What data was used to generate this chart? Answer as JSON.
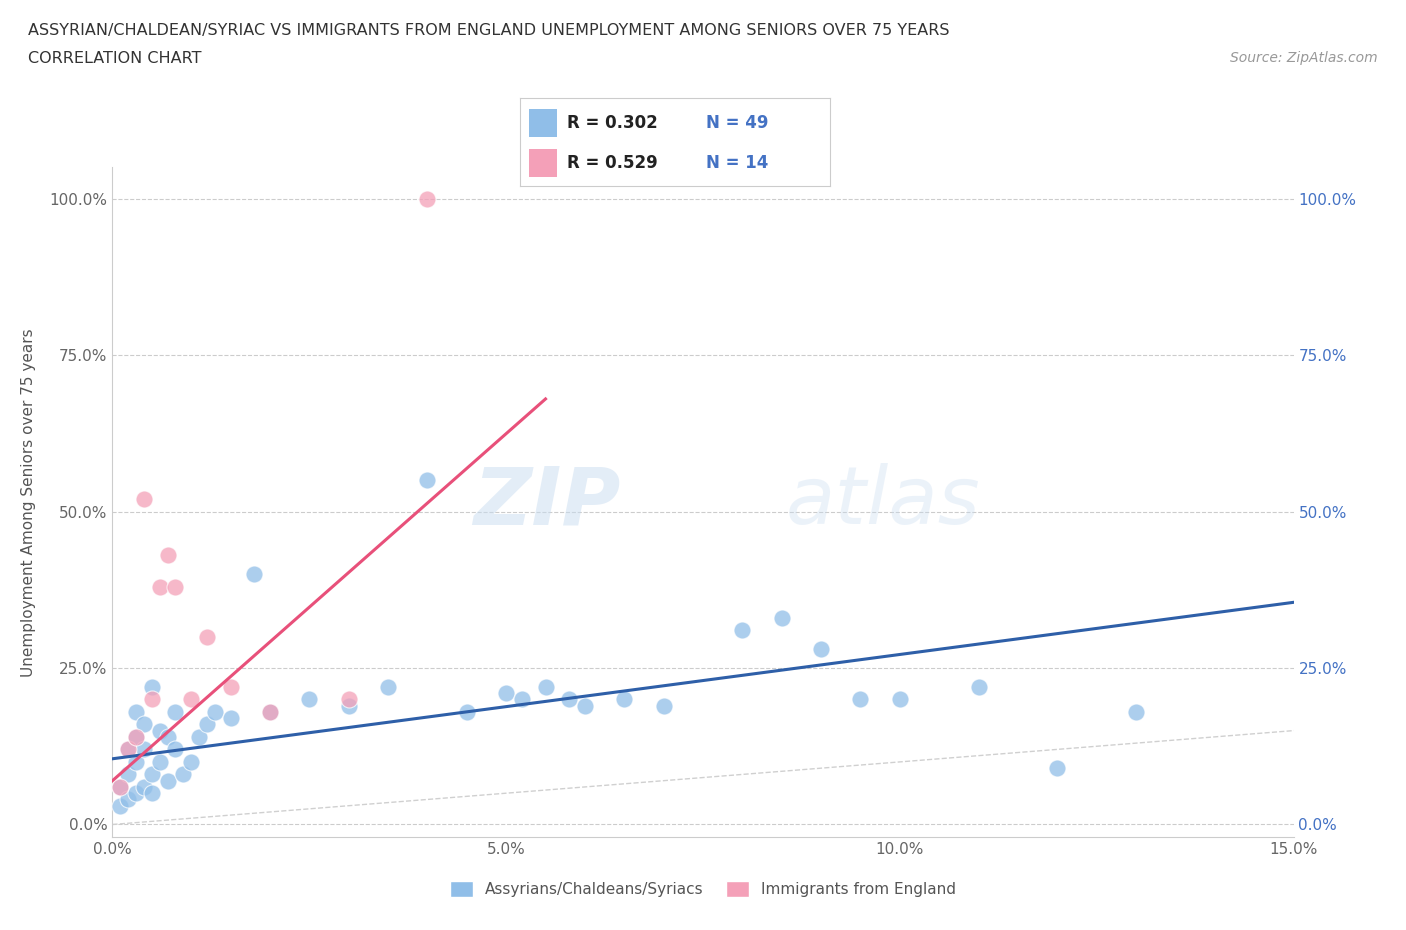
{
  "title_line1": "ASSYRIAN/CHALDEAN/SYRIAC VS IMMIGRANTS FROM ENGLAND UNEMPLOYMENT AMONG SENIORS OVER 75 YEARS",
  "title_line2": "CORRELATION CHART",
  "source_text": "Source: ZipAtlas.com",
  "ylabel": "Unemployment Among Seniors over 75 years",
  "xlim": [
    0.0,
    0.15
  ],
  "ylim": [
    -0.02,
    1.05
  ],
  "yticks": [
    0.0,
    0.25,
    0.5,
    0.75,
    1.0
  ],
  "ytick_labels": [
    "0.0%",
    "25.0%",
    "50.0%",
    "75.0%",
    "100.0%"
  ],
  "xticks": [
    0.0,
    0.05,
    0.1,
    0.15
  ],
  "xtick_labels": [
    "0.0%",
    "5.0%",
    "10.0%",
    "15.0%"
  ],
  "watermark": "ZIPatlas",
  "blue_color": "#90BEE8",
  "pink_color": "#F4A0B8",
  "blue_line_color": "#2E5FA8",
  "pink_line_color": "#E8507A",
  "diag_line_color": "#D0D0D0",
  "legend_R1": "R = 0.302",
  "legend_N1": "N = 49",
  "legend_R2": "R = 0.529",
  "legend_N2": "N = 14",
  "blue_scatter_x": [
    0.001,
    0.001,
    0.002,
    0.002,
    0.002,
    0.003,
    0.003,
    0.003,
    0.003,
    0.004,
    0.004,
    0.004,
    0.005,
    0.005,
    0.005,
    0.006,
    0.006,
    0.007,
    0.007,
    0.008,
    0.008,
    0.009,
    0.01,
    0.011,
    0.012,
    0.013,
    0.015,
    0.018,
    0.02,
    0.025,
    0.03,
    0.035,
    0.04,
    0.045,
    0.05,
    0.052,
    0.055,
    0.058,
    0.06,
    0.065,
    0.07,
    0.08,
    0.085,
    0.09,
    0.095,
    0.1,
    0.11,
    0.12,
    0.13
  ],
  "blue_scatter_y": [
    0.06,
    0.03,
    0.08,
    0.04,
    0.12,
    0.05,
    0.1,
    0.14,
    0.18,
    0.06,
    0.12,
    0.16,
    0.05,
    0.08,
    0.22,
    0.1,
    0.15,
    0.07,
    0.14,
    0.12,
    0.18,
    0.08,
    0.1,
    0.14,
    0.16,
    0.18,
    0.17,
    0.4,
    0.18,
    0.2,
    0.19,
    0.22,
    0.55,
    0.18,
    0.21,
    0.2,
    0.22,
    0.2,
    0.19,
    0.2,
    0.19,
    0.31,
    0.33,
    0.28,
    0.2,
    0.2,
    0.22,
    0.09,
    0.18
  ],
  "pink_scatter_x": [
    0.001,
    0.002,
    0.003,
    0.004,
    0.005,
    0.006,
    0.007,
    0.008,
    0.01,
    0.012,
    0.015,
    0.02,
    0.03,
    0.04
  ],
  "pink_scatter_y": [
    0.06,
    0.12,
    0.14,
    0.52,
    0.2,
    0.38,
    0.43,
    0.38,
    0.2,
    0.3,
    0.22,
    0.18,
    0.2,
    1.0
  ],
  "blue_trend_x": [
    0.0,
    0.15
  ],
  "blue_trend_y": [
    0.105,
    0.355
  ],
  "pink_trend_x": [
    0.0,
    0.055
  ],
  "pink_trend_y": [
    0.07,
    0.68
  ]
}
